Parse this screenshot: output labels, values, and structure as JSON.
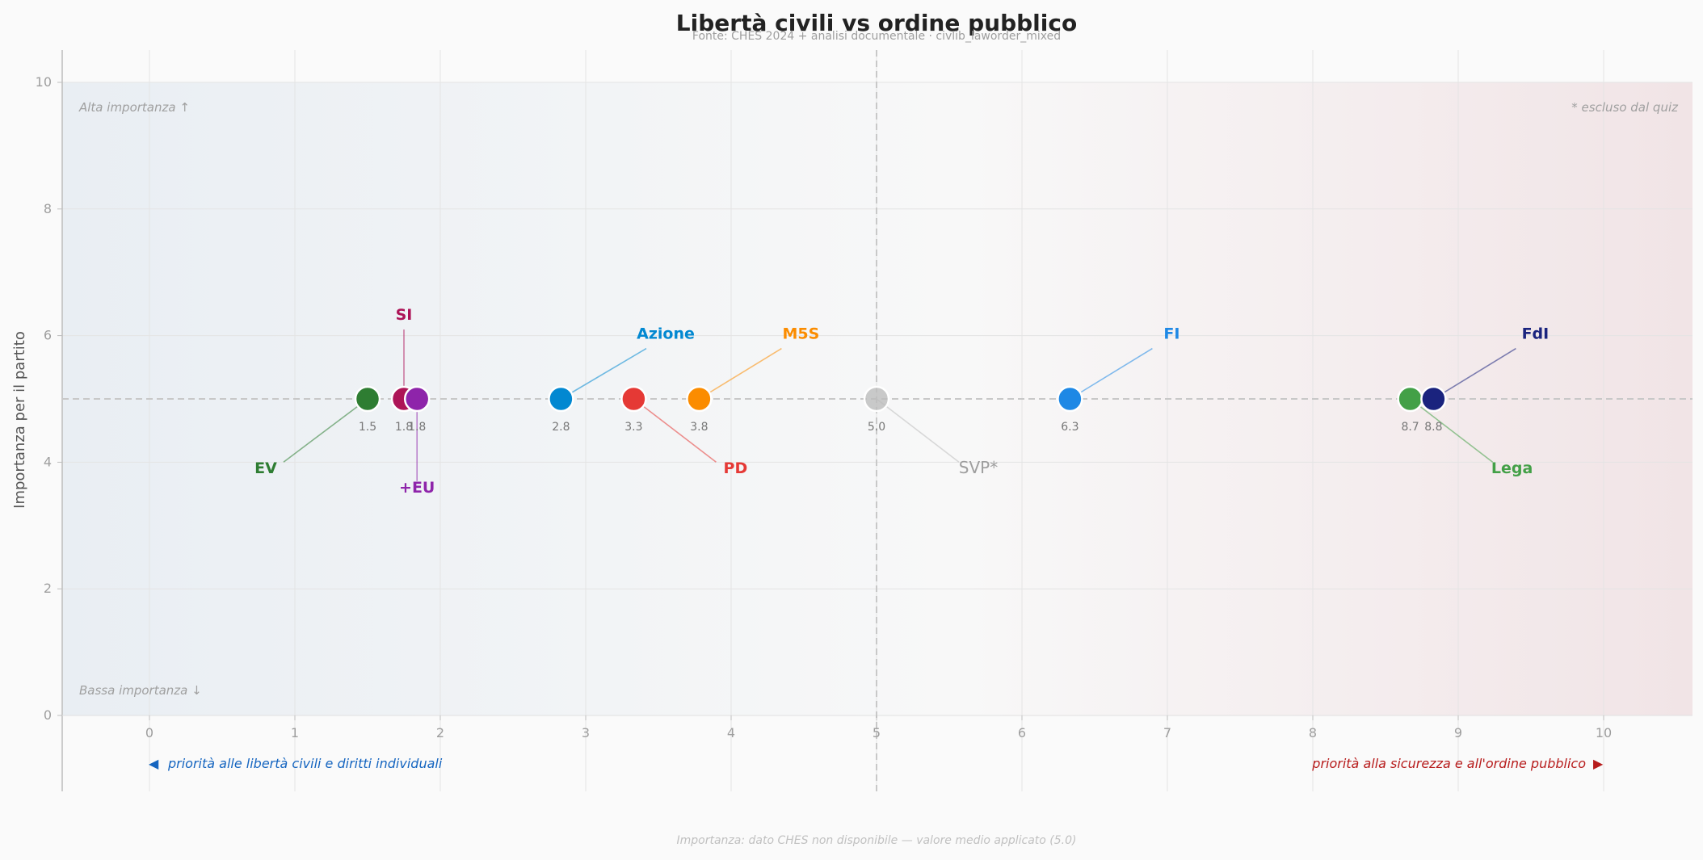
{
  "chart_data": {
    "type": "scatter",
    "title": "Libertà civili vs ordine pubblico",
    "subtitle": "Fonte: CHES 2024 + analisi documentale  ·  civlib_laworder_mixed",
    "xlabel": "",
    "ylabel": "Importanza per il partito",
    "xlim": [
      -0.6,
      10.6
    ],
    "ylim": [
      -1.2,
      10.5
    ],
    "x_ticks": [
      0,
      1,
      2,
      3,
      4,
      5,
      6,
      7,
      8,
      9,
      10
    ],
    "y_ticks": [
      0,
      2,
      4,
      6,
      8,
      10
    ],
    "grid": true,
    "reference_lines": {
      "x": 5.0,
      "y": 5.0
    },
    "corner_labels": {
      "top_left": "Alta importanza ↑",
      "bottom_left": "Bassa importanza ↓",
      "top_right": "* escluso dal quiz"
    },
    "axis_ends": {
      "left": "priorità alle libertà civili e diritti individuali",
      "left_arrow": "◀",
      "right": "priorità alla sicurezza e all'ordine pubblico",
      "right_arrow": "▶"
    },
    "footer": "Importanza: dato CHES non disponibile — valore medio applicato (5.0)",
    "points": [
      {
        "name": "EV",
        "x": 1.5,
        "y": 5.0,
        "value_label": "1.5",
        "color": "#2e7d32",
        "label_x": 0.8,
        "label_y": 3.9,
        "excluded": false
      },
      {
        "name": "SI",
        "x": 1.75,
        "y": 5.0,
        "value_label": "1.8",
        "color": "#ad1457",
        "label_x": 1.75,
        "label_y": 6.3,
        "excluded": false
      },
      {
        "name": "+EU",
        "x": 1.84,
        "y": 5.0,
        "value_label": "1.8",
        "color": "#8e24aa",
        "label_x": 1.84,
        "label_y": 3.6,
        "excluded": false
      },
      {
        "name": "Azione",
        "x": 2.83,
        "y": 5.0,
        "value_label": "2.8",
        "color": "#0288d1",
        "label_x": 3.55,
        "label_y": 6.0,
        "excluded": false
      },
      {
        "name": "PD",
        "x": 3.33,
        "y": 5.0,
        "value_label": "3.3",
        "color": "#e53935",
        "label_x": 4.03,
        "label_y": 3.9,
        "excluded": false
      },
      {
        "name": "M5S",
        "x": 3.78,
        "y": 5.0,
        "value_label": "3.8",
        "color": "#fb8c00",
        "label_x": 4.48,
        "label_y": 6.0,
        "excluded": false
      },
      {
        "name": "SVP*",
        "x": 5.0,
        "y": 5.0,
        "value_label": "5.0",
        "color": "#bdbdbd",
        "label_x": 5.7,
        "label_y": 3.9,
        "excluded": true
      },
      {
        "name": "FI",
        "x": 6.33,
        "y": 5.0,
        "value_label": "6.3",
        "color": "#1e88e5",
        "label_x": 7.03,
        "label_y": 6.0,
        "excluded": false
      },
      {
        "name": "Lega",
        "x": 8.67,
        "y": 5.0,
        "value_label": "8.7",
        "color": "#43a047",
        "label_x": 9.37,
        "label_y": 3.9,
        "excluded": false
      },
      {
        "name": "FdI",
        "x": 8.83,
        "y": 5.0,
        "value_label": "8.8",
        "color": "#1a237e",
        "label_x": 9.53,
        "label_y": 6.0,
        "excluded": false
      }
    ]
  }
}
